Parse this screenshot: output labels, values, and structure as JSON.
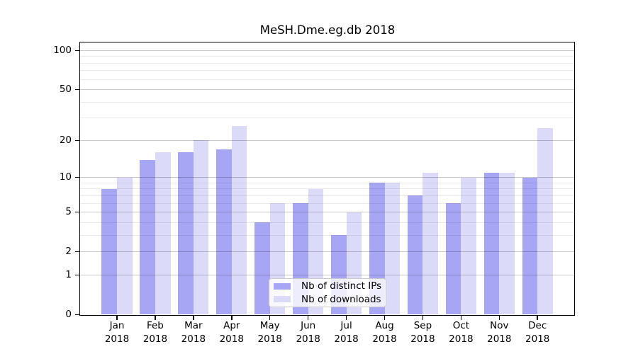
{
  "title": "MeSH.Dme.eg.db 2018",
  "chart_data": {
    "type": "bar",
    "title": "MeSH.Dme.eg.db 2018",
    "categories": [
      "Jan",
      "Feb",
      "Mar",
      "Apr",
      "May",
      "Jun",
      "Jul",
      "Aug",
      "Sep",
      "Oct",
      "Nov",
      "Dec"
    ],
    "x_tick_year": "2018",
    "series": [
      {
        "name": "Nb of distinct IPs",
        "color": "#a6a6f5",
        "values": [
          8,
          14,
          16,
          17,
          4,
          6,
          3,
          9,
          7,
          6,
          11,
          10
        ]
      },
      {
        "name": "Nb of downloads",
        "color": "#dbdbf9",
        "values": [
          10,
          16,
          20,
          26,
          6,
          8,
          5,
          9,
          11,
          10,
          11,
          25
        ]
      }
    ],
    "yscale": "log1p",
    "ylim": [
      0,
      114
    ],
    "yticks": [
      0,
      1,
      2,
      5,
      10,
      20,
      50,
      100
    ],
    "yticks_minor": [
      3,
      4,
      6,
      7,
      8,
      9,
      30,
      40,
      60,
      70,
      80,
      90
    ],
    "grid": true,
    "grid_above_bars": true,
    "legend_position": "bottom-center"
  },
  "colors": {
    "background": "#ffffff",
    "axis": "#000000",
    "major_grid": "rgba(0,0,0,0.22)",
    "minor_grid": "rgba(0,0,0,0.08)"
  }
}
